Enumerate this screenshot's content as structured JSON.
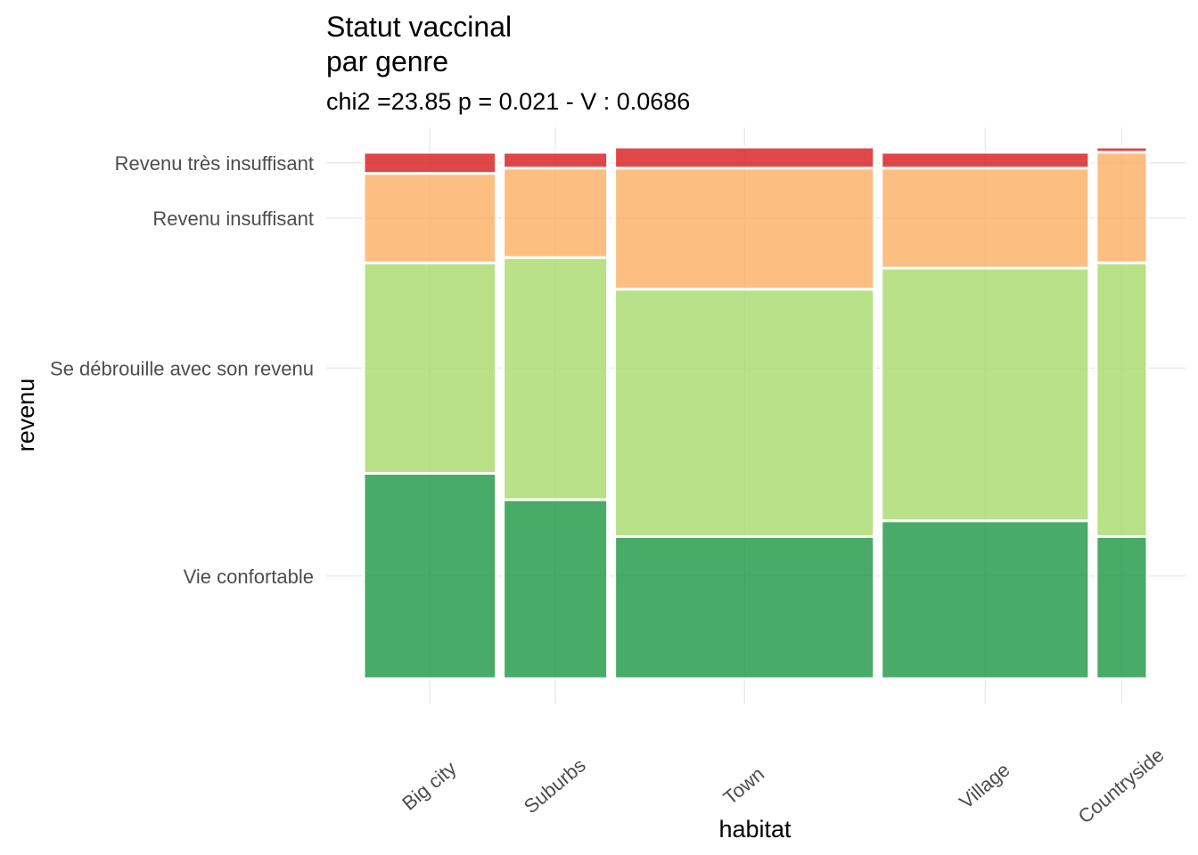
{
  "chart_data": {
    "type": "mosaic",
    "title_lines": [
      "Statut vaccinal",
      "par genre"
    ],
    "subtitle": "chi2 =23.85 p = 0.021 - V : 0.0686",
    "xlabel": "habitat",
    "ylabel": "revenu",
    "categories": [
      "Big city",
      "Suburbs",
      "Town",
      "Village",
      "Countryside"
    ],
    "category_widths": [
      0.169,
      0.133,
      0.331,
      0.265,
      0.065
    ],
    "levels": [
      "Vie confortable",
      "Se débrouille avec son revenu",
      "Revenu insuffisant",
      "Revenu très insuffisant"
    ],
    "level_colors": [
      "#1a9641",
      "#a6d96a",
      "#fdae61",
      "#d7191c"
    ],
    "fill_opacity": 0.8,
    "proportions": {
      "Big city": [
        0.39,
        0.4,
        0.17,
        0.04
      ],
      "Suburbs": [
        0.34,
        0.46,
        0.17,
        0.03
      ],
      "Town": [
        0.27,
        0.47,
        0.23,
        0.04
      ],
      "Village": [
        0.3,
        0.48,
        0.19,
        0.03
      ],
      "Countryside": [
        0.27,
        0.52,
        0.21,
        0.01
      ]
    },
    "grid": true,
    "legend": "none"
  }
}
